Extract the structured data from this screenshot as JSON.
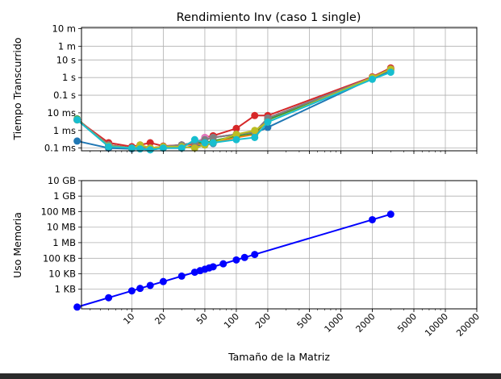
{
  "chart_data": [
    {
      "type": "line",
      "title": "Rendimiento Inv (caso 1 single)",
      "ylabel": "Tiempo Transcurrido",
      "xlabel": "",
      "xscale": "log",
      "yscale": "log",
      "xlim": [
        3.3,
        20000
      ],
      "ylim": [
        7e-05,
        700
      ],
      "grid": true,
      "yticks": [
        {
          "value": 0.0001,
          "label": "0.1 ms"
        },
        {
          "value": 0.001,
          "label": "1 ms"
        },
        {
          "value": 0.01,
          "label": "10 ms"
        },
        {
          "value": 0.1,
          "label": "0.1 s"
        },
        {
          "value": 1,
          "label": "1 s"
        },
        {
          "value": 10,
          "label": "10 s"
        },
        {
          "value": 60,
          "label": "1 m"
        },
        {
          "value": 600,
          "label": "10 m"
        }
      ],
      "series": [
        {
          "color": "#1f77b4",
          "x": [
            3,
            6,
            10,
            12,
            15,
            20,
            30,
            40,
            50,
            60,
            100,
            150,
            200,
            2000,
            3000
          ],
          "y": [
            0.00025,
            0.0001,
            9e-05,
            9e-05,
            8e-05,
            0.0001,
            0.0001,
            0.00013,
            0.00015,
            0.00018,
            0.0005,
            0.0007,
            0.0015,
            0.9,
            2.5
          ]
        },
        {
          "color": "#ff7f0e",
          "x": [
            3,
            6,
            10,
            12,
            15,
            20,
            30,
            40,
            50,
            60,
            100,
            150,
            200,
            2000,
            3000
          ],
          "y": [
            0.004,
            0.00015,
            0.0001,
            0.00012,
            0.0001,
            0.00012,
            0.00015,
            0.00015,
            0.0002,
            0.0002,
            0.0004,
            0.0006,
            0.004,
            1.0,
            3.0
          ]
        },
        {
          "color": "#2ca02c",
          "x": [
            3,
            6,
            10,
            12,
            15,
            20,
            30,
            40,
            50,
            60,
            100,
            150,
            200,
            2000,
            3000
          ],
          "y": [
            0.0045,
            0.00015,
            0.0001,
            0.00012,
            0.0001,
            0.00012,
            0.00015,
            0.0002,
            0.0002,
            0.00025,
            0.0005,
            0.0007,
            0.004,
            1.0,
            3.2
          ]
        },
        {
          "color": "#d62728",
          "x": [
            3,
            6,
            10,
            12,
            15,
            20,
            30,
            40,
            50,
            60,
            100,
            150,
            200,
            2000,
            3000
          ],
          "y": [
            0.004,
            0.0002,
            0.00012,
            0.00015,
            0.0002,
            0.00013,
            0.00015,
            0.00018,
            0.0004,
            0.0005,
            0.0013,
            0.007,
            0.007,
            1.1,
            3.5
          ]
        },
        {
          "color": "#9467bd",
          "x": [
            3,
            6,
            10,
            12,
            15,
            20,
            30,
            40,
            50,
            60,
            100,
            150,
            200,
            2000,
            3000
          ],
          "y": [
            0.004,
            0.00015,
            0.0001,
            0.00012,
            0.0001,
            0.00012,
            0.00015,
            0.0002,
            0.0003,
            0.0004,
            0.0006,
            0.0008,
            0.005,
            1.0,
            3.0
          ]
        },
        {
          "color": "#8c564b",
          "x": [
            3,
            6,
            10,
            12,
            15,
            20,
            30,
            40,
            50,
            60,
            100,
            150,
            200,
            2000,
            3000
          ],
          "y": [
            0.004,
            0.00015,
            0.0001,
            0.00012,
            0.0001,
            0.00012,
            0.00015,
            0.0002,
            0.0003,
            0.0004,
            0.0006,
            0.0008,
            0.005,
            1.0,
            3.0
          ]
        },
        {
          "color": "#e377c2",
          "x": [
            3,
            6,
            10,
            12,
            15,
            20,
            30,
            40,
            50,
            60,
            100,
            150,
            200,
            2000,
            3000
          ],
          "y": [
            0.004,
            0.00015,
            0.0001,
            0.00012,
            0.0001,
            0.00012,
            0.00015,
            0.0002,
            0.0004,
            0.0004,
            0.0006,
            0.0008,
            0.005,
            1.0,
            3.0
          ]
        },
        {
          "color": "#7f7f7f",
          "x": [
            3,
            6,
            10,
            12,
            15,
            20,
            30,
            40,
            50,
            60,
            100,
            150,
            200,
            2000,
            3000
          ],
          "y": [
            0.004,
            0.00015,
            0.0001,
            0.00012,
            0.0001,
            0.00012,
            0.00015,
            0.0002,
            0.0003,
            0.0004,
            0.0006,
            0.0008,
            0.005,
            1.0,
            3.0
          ]
        },
        {
          "color": "#bcbd22",
          "x": [
            3,
            6,
            10,
            12,
            15,
            20,
            30,
            40,
            50,
            60,
            100,
            150,
            200,
            2000,
            3000
          ],
          "y": [
            0.004,
            0.00013,
            0.0001,
            0.00015,
            0.0001,
            0.00012,
            0.00012,
            0.0001,
            0.00015,
            0.0002,
            0.0006,
            0.001,
            0.003,
            1.0,
            3.0
          ]
        },
        {
          "color": "#17becf",
          "x": [
            3,
            6,
            10,
            12,
            15,
            20,
            30,
            40,
            50,
            60,
            100,
            150,
            200,
            2000,
            3000
          ],
          "y": [
            0.004,
            0.00012,
            0.0001,
            9e-05,
            8e-05,
            0.0001,
            0.0001,
            0.0003,
            0.0002,
            0.0002,
            0.0003,
            0.0004,
            0.003,
            0.8,
            2.0
          ]
        }
      ]
    },
    {
      "type": "line",
      "title": "",
      "ylabel": "Uso Memoria",
      "xlabel": "Tamaño de la Matriz",
      "xscale": "log",
      "yscale": "log",
      "xlim": [
        3.3,
        20000
      ],
      "ylim": [
        55,
        10737418240
      ],
      "grid": true,
      "yticks": [
        {
          "value": 1024,
          "label": "1 KB"
        },
        {
          "value": 10240,
          "label": "10 KB"
        },
        {
          "value": 102400,
          "label": "100 KB"
        },
        {
          "value": 1048576,
          "label": "1 MB"
        },
        {
          "value": 10485760,
          "label": "10 MB"
        },
        {
          "value": 104857600,
          "label": "100 MB"
        },
        {
          "value": 1073741824,
          "label": "1 GB"
        },
        {
          "value": 10737418240,
          "label": "10 GB"
        }
      ],
      "xticks": [
        {
          "value": 10,
          "label": "10"
        },
        {
          "value": 20,
          "label": "20"
        },
        {
          "value": 50,
          "label": "50"
        },
        {
          "value": 100,
          "label": "100"
        },
        {
          "value": 200,
          "label": "200"
        },
        {
          "value": 500,
          "label": "500"
        },
        {
          "value": 1000,
          "label": "1000"
        },
        {
          "value": 2000,
          "label": "2000"
        },
        {
          "value": 5000,
          "label": "5000"
        },
        {
          "value": 10000,
          "label": "10000"
        },
        {
          "value": 20000,
          "label": "20000"
        }
      ],
      "series": [
        {
          "color": "#0000ff",
          "x": [
            3,
            6,
            10,
            12,
            15,
            20,
            30,
            40,
            45,
            50,
            55,
            60,
            75,
            100,
            120,
            150,
            2000,
            3000
          ],
          "y": [
            72,
            288,
            800,
            1152,
            1800,
            3200,
            7200,
            12800,
            16200,
            20000,
            24200,
            28800,
            45000,
            80000,
            115200,
            180000,
            32000000,
            72000000
          ]
        }
      ]
    }
  ]
}
